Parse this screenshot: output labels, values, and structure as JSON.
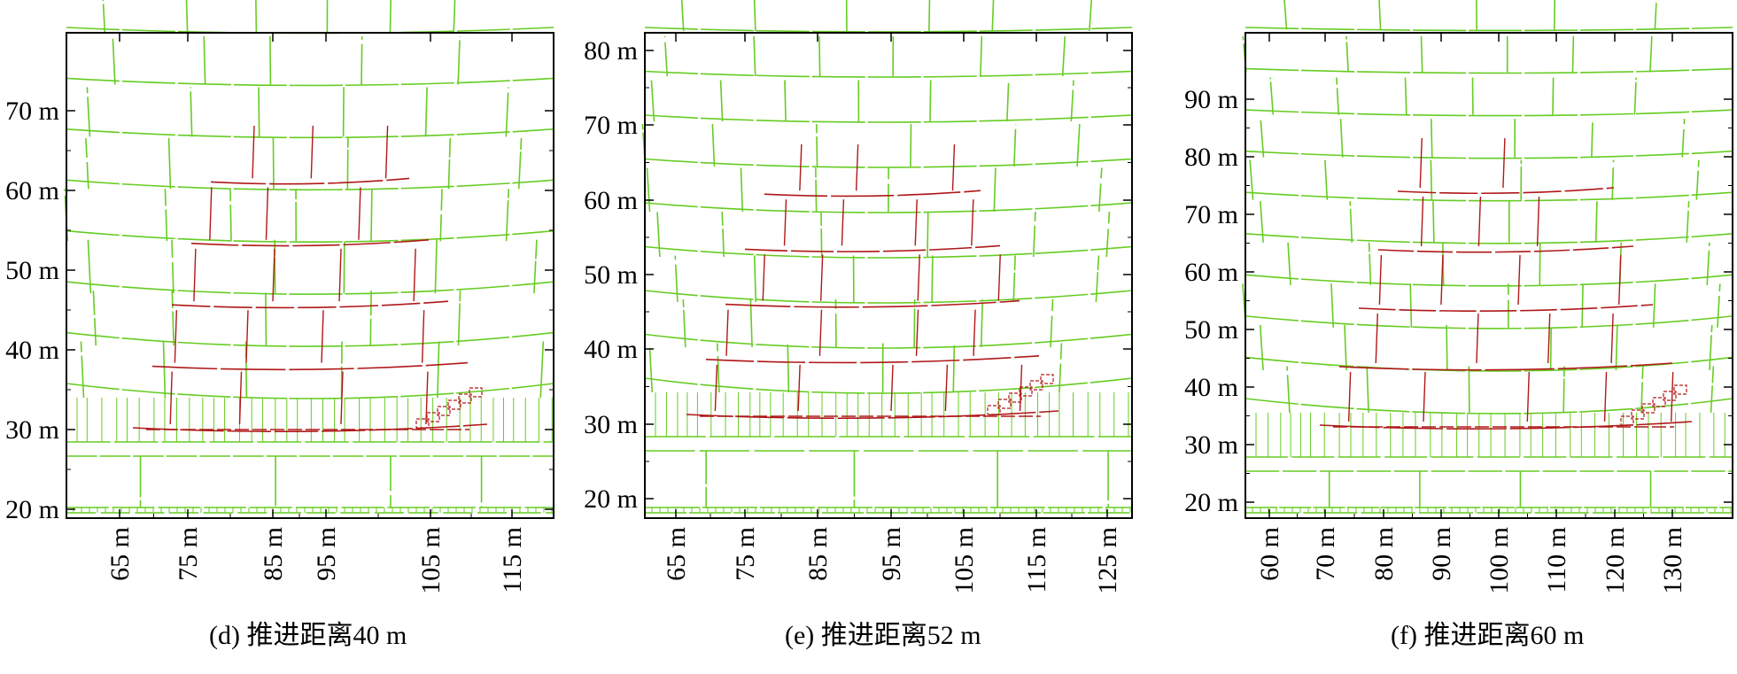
{
  "colors": {
    "joint_intact": "#66cc22",
    "joint_failed": "#b01818",
    "axis": "#000000"
  },
  "panels": [
    {
      "caption": "(d) 推进距离40 m",
      "y_ticks": [
        "20 m",
        "30 m",
        "40 m",
        "50 m",
        "60 m",
        "70 m"
      ],
      "x_ticks": [
        "65 m",
        "75 m",
        "85 m",
        "95 m",
        "105 m",
        "115 m"
      ]
    },
    {
      "caption": "(e) 推进距离52 m",
      "y_ticks": [
        "20 m",
        "30 m",
        "40 m",
        "50 m",
        "60 m",
        "70 m",
        "80 m"
      ],
      "x_ticks": [
        "65 m",
        "75 m",
        "85 m",
        "95 m",
        "105 m",
        "115 m",
        "125 m"
      ]
    },
    {
      "caption": "(f) 推进距离60 m",
      "y_ticks": [
        "20 m",
        "30 m",
        "40 m",
        "50 m",
        "60 m",
        "70 m",
        "80 m",
        "90 m"
      ],
      "x_ticks": [
        "60 m",
        "70 m",
        "80 m",
        "90 m",
        "100 m",
        "110 m",
        "120 m",
        "130 m"
      ]
    }
  ]
}
